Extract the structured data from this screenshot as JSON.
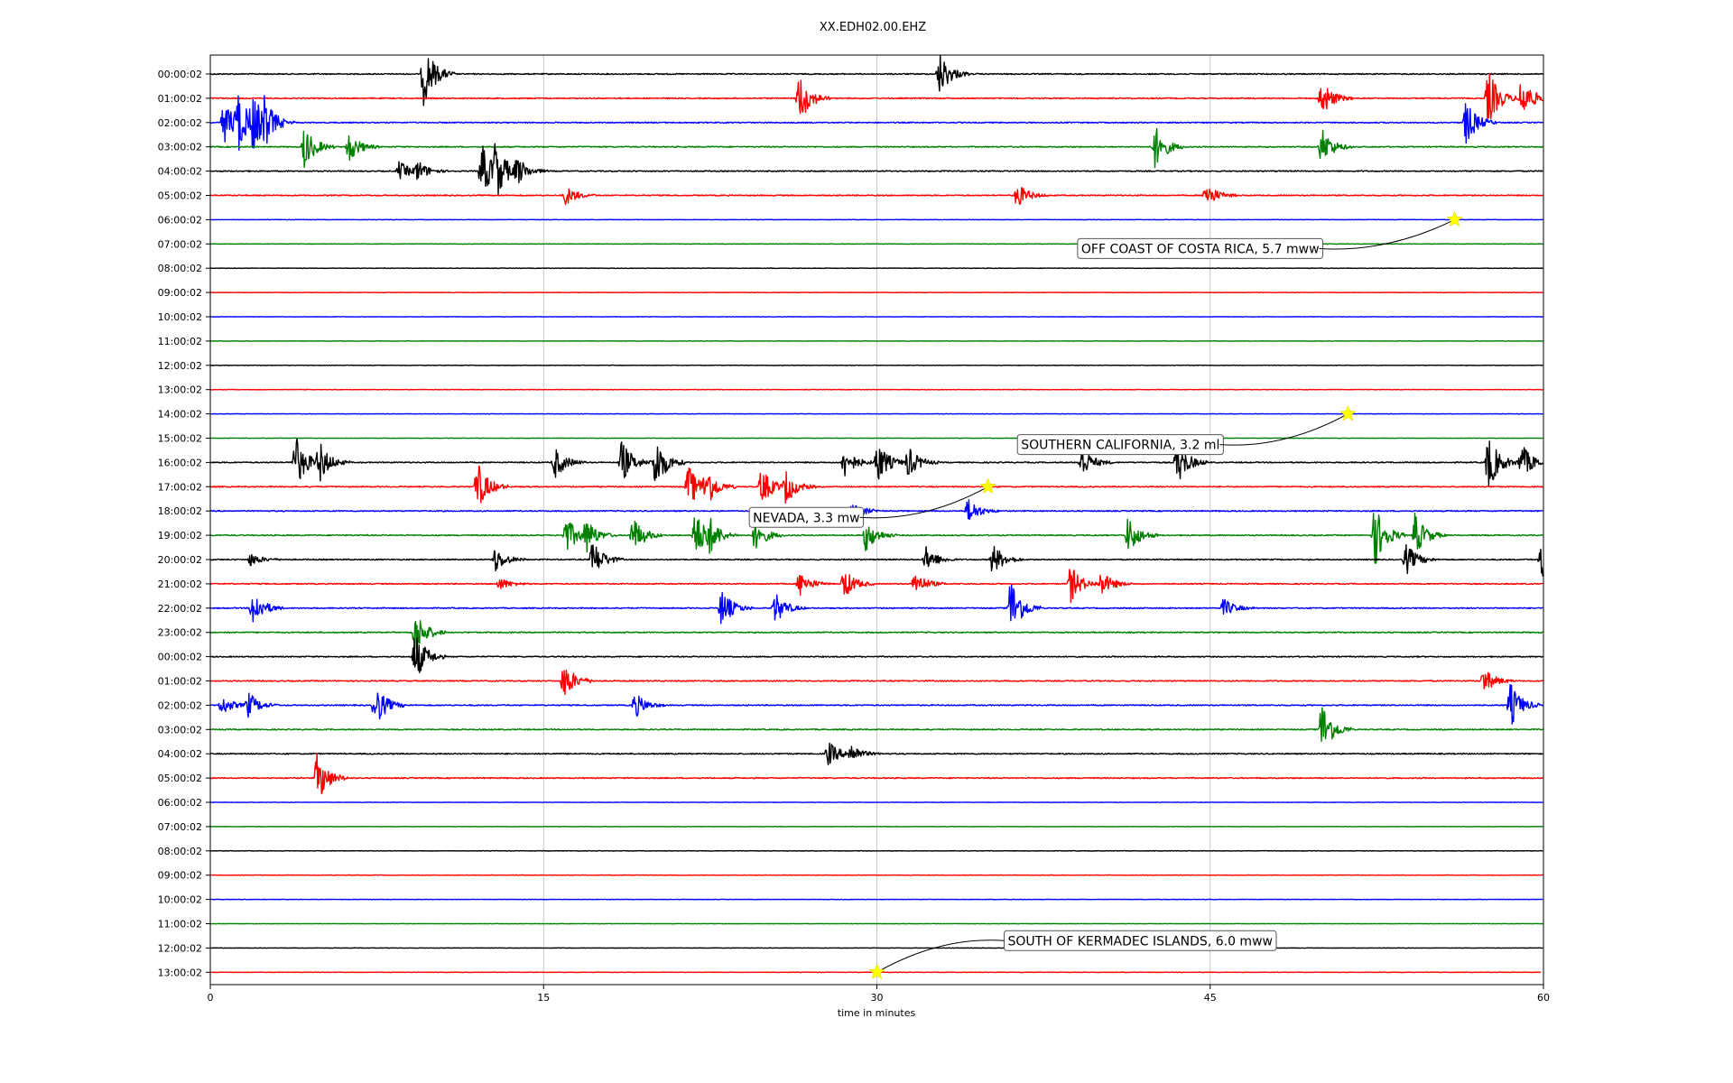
{
  "chart_data": {
    "type": "dayplot",
    "title": "XX.EDH02.00.EHZ",
    "xlabel": "time in minutes",
    "ylabel": "",
    "xlim": [
      0,
      60
    ],
    "xticks": [
      "0",
      "15",
      "30",
      "45",
      "60"
    ],
    "grid": "vertical lines at 15, 30, 45",
    "legend": "none",
    "trace_colors": [
      "#000000",
      "#ff0000",
      "#0000ff",
      "#008000"
    ],
    "hour_labels": [
      "00:00:02",
      "01:00:02",
      "02:00:02",
      "03:00:02",
      "04:00:02",
      "05:00:02",
      "06:00:02",
      "07:00:02",
      "08:00:02",
      "09:00:02",
      "10:00:02",
      "11:00:02",
      "12:00:02",
      "13:00:02",
      "14:00:02",
      "15:00:02",
      "16:00:02",
      "17:00:02",
      "18:00:02",
      "19:00:02",
      "20:00:02",
      "21:00:02",
      "22:00:02",
      "23:00:02",
      "00:00:02",
      "01:00:02",
      "02:00:02",
      "03:00:02",
      "04:00:02",
      "05:00:02",
      "06:00:02",
      "07:00:02",
      "08:00:02",
      "09:00:02",
      "10:00:02",
      "11:00:02",
      "12:00:02",
      "13:00:02"
    ],
    "bursts": [
      [
        [
          9.6,
          1.0
        ],
        [
          32.8,
          0.7
        ]
      ],
      [
        [
          26.5,
          0.8
        ],
        [
          50.0,
          0.6
        ],
        [
          57.5,
          0.9
        ],
        [
          59.0,
          0.7
        ]
      ],
      [
        [
          0.6,
          0.7
        ],
        [
          1.2,
          0.9
        ],
        [
          1.9,
          0.8
        ],
        [
          2.4,
          0.6
        ],
        [
          56.5,
          0.7
        ]
      ],
      [
        [
          4.2,
          0.7
        ],
        [
          6.2,
          0.5
        ],
        [
          42.5,
          0.7
        ],
        [
          50.0,
          0.6
        ]
      ],
      [
        [
          8.5,
          0.3
        ],
        [
          9.3,
          0.3
        ],
        [
          12.2,
          0.9
        ],
        [
          12.8,
          0.8
        ],
        [
          13.8,
          0.4
        ]
      ],
      [
        [
          16.0,
          0.3
        ],
        [
          36.3,
          0.4
        ],
        [
          44.8,
          0.4
        ]
      ],
      [],
      [],
      [],
      [],
      [],
      [],
      [],
      [],
      [],
      [],
      [
        [
          3.8,
          0.9
        ],
        [
          4.9,
          0.6
        ],
        [
          15.5,
          0.5
        ],
        [
          18.5,
          0.7
        ],
        [
          20.0,
          0.9
        ],
        [
          28.5,
          0.5
        ],
        [
          30.0,
          0.7
        ],
        [
          31.4,
          0.5
        ],
        [
          39.2,
          0.5
        ],
        [
          43.5,
          0.7
        ],
        [
          57.5,
          0.9
        ],
        [
          59.0,
          0.6
        ]
      ],
      [
        [
          12.0,
          0.8
        ],
        [
          21.5,
          0.7
        ],
        [
          22.3,
          0.6
        ],
        [
          24.8,
          0.6
        ],
        [
          25.9,
          0.5
        ]
      ],
      [
        [
          28.9,
          0.3
        ],
        [
          34.1,
          0.4
        ]
      ],
      [
        [
          16.0,
          0.6
        ],
        [
          16.9,
          0.5
        ],
        [
          19.0,
          0.6
        ],
        [
          21.8,
          0.8
        ],
        [
          22.4,
          0.5
        ],
        [
          24.5,
          0.5
        ],
        [
          29.5,
          0.5
        ],
        [
          41.3,
          0.6
        ],
        [
          52.4,
          1.0
        ],
        [
          54.2,
          0.7
        ]
      ],
      [
        [
          1.8,
          0.2
        ],
        [
          12.8,
          0.4
        ],
        [
          17.2,
          0.6
        ],
        [
          32.2,
          0.4
        ],
        [
          35.2,
          0.5
        ],
        [
          53.8,
          0.5
        ],
        [
          59.9,
          0.7
        ]
      ],
      [
        [
          13.0,
          0.2
        ],
        [
          26.5,
          0.4
        ],
        [
          28.5,
          0.5
        ],
        [
          31.7,
          0.4
        ],
        [
          38.7,
          0.6
        ],
        [
          40.1,
          0.4
        ]
      ],
      [
        [
          1.9,
          0.6
        ],
        [
          23.0,
          0.6
        ],
        [
          25.4,
          0.5
        ],
        [
          36.0,
          1.0
        ],
        [
          45.6,
          0.3
        ]
      ],
      [
        [
          9.2,
          0.7
        ]
      ],
      [
        [
          9.2,
          0.8
        ]
      ],
      [
        [
          15.9,
          0.6
        ],
        [
          57.3,
          0.4
        ]
      ],
      [
        [
          0.5,
          0.3
        ],
        [
          1.7,
          0.4
        ],
        [
          7.4,
          0.7
        ],
        [
          19.1,
          0.4
        ],
        [
          58.5,
          0.7
        ]
      ],
      [
        [
          50.0,
          0.9
        ]
      ],
      [
        [
          27.8,
          0.4
        ],
        [
          28.8,
          0.3
        ]
      ],
      [
        [
          4.8,
          0.8
        ]
      ],
      [],
      [],
      [],
      [],
      [],
      [],
      [],
      []
    ],
    "events": [
      {
        "label": "OFF COAST OF COSTA RICA, 5.7 mww",
        "row": 6,
        "minute": 56.0
      },
      {
        "label": "SOUTHERN CALIFORNIA, 3.2 ml",
        "row": 14,
        "minute": 51.2
      },
      {
        "label": "NEVADA, 3.3 mw",
        "row": 17,
        "minute": 35.0
      },
      {
        "label": "SOUTH OF KERMADEC ISLANDS, 6.0 mww",
        "row": 37,
        "minute": 30.0
      }
    ],
    "event_marker_color": "#ffff00"
  }
}
